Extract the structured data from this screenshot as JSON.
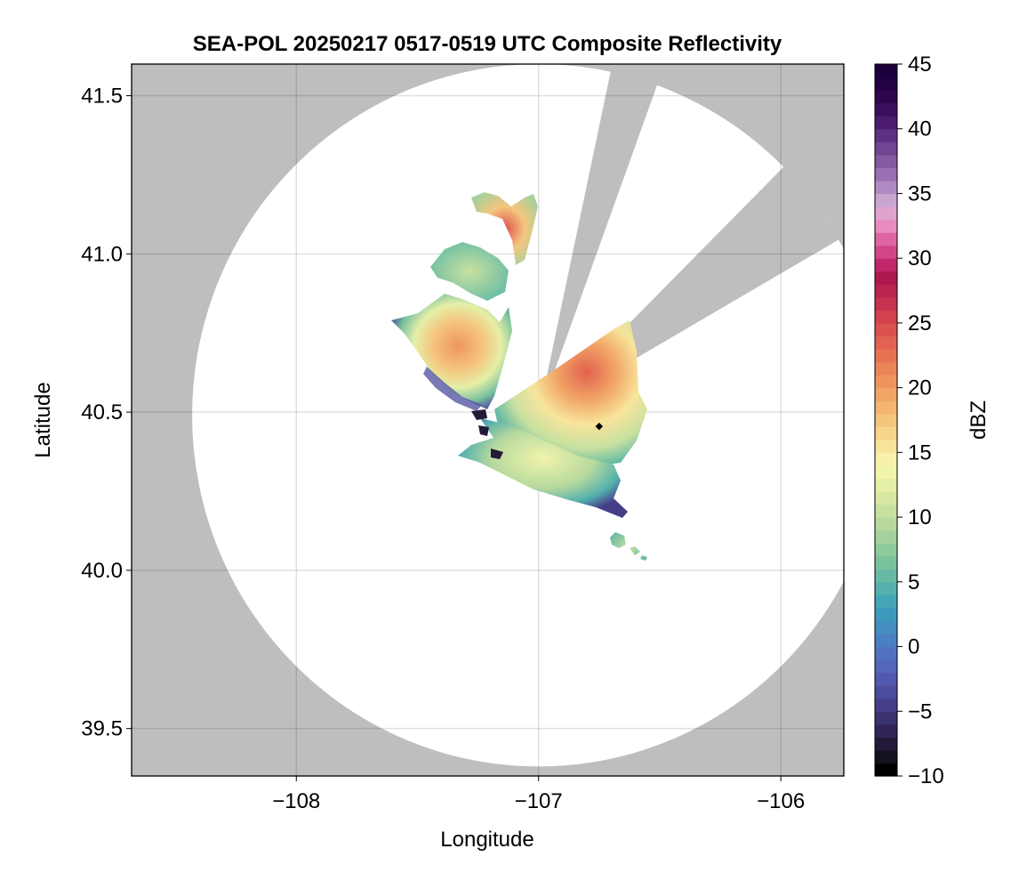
{
  "chart_data": {
    "type": "heatmap",
    "title": "SEA-POL 20250217 0517-0519 UTC Composite Reflectivity",
    "xlabel": "Longitude",
    "ylabel": "Latitude",
    "xlim": [
      -108.68,
      -105.74
    ],
    "ylim": [
      39.35,
      41.6
    ],
    "xticks": [
      -108,
      -107,
      -106
    ],
    "xtick_labels": [
      "−108",
      "−107",
      "−106"
    ],
    "yticks": [
      39.5,
      40.0,
      40.5,
      41.0,
      41.5
    ],
    "ytick_labels": [
      "39.5",
      "40.0",
      "40.5",
      "41.0",
      "41.5"
    ],
    "grid": true,
    "radar": {
      "center_lon": -107.0,
      "center_lat": 40.49,
      "radius_lon_deg": 1.43,
      "radius_lat_deg": 1.11,
      "blocked_sectors_deg_from_north": [
        [
          12,
          20
        ],
        [
          45,
          60
        ]
      ],
      "no_coverage_color": "#bebebe",
      "coverage_color": "#ffffff"
    },
    "site_marker": {
      "lon": -106.75,
      "lat": 40.455
    },
    "echo_regions": [
      {
        "name": "northwest cell",
        "lon": -107.28,
        "lat": 40.66,
        "approx_dbz": 20
      },
      {
        "name": "northeast cell",
        "lon": -106.7,
        "lat": 40.5,
        "approx_dbz": 25
      },
      {
        "name": "northern band",
        "lon": -106.96,
        "lat": 41.11,
        "approx_dbz": 28
      },
      {
        "name": "southern tail",
        "lon": -106.9,
        "lat": 40.3,
        "approx_dbz": 14
      }
    ],
    "colorbar": {
      "label": "dBZ",
      "min": -10,
      "max": 45,
      "ticks": [
        -10,
        -5,
        0,
        5,
        10,
        15,
        20,
        25,
        30,
        35,
        40,
        45
      ],
      "tick_labels": [
        "−10",
        "−5",
        "0",
        "5",
        "10",
        "15",
        "20",
        "25",
        "30",
        "35",
        "40",
        "45"
      ],
      "colors": [
        "#000000",
        "#14101e",
        "#231a3a",
        "#302556",
        "#3b3271",
        "#453f89",
        "#4c4c9d",
        "#5059ad",
        "#5466b8",
        "#5173bf",
        "#4a80c2",
        "#438dc1",
        "#3e9abd",
        "#44a6b6",
        "#54b1ad",
        "#66baa4",
        "#7ac29e",
        "#8fca9b",
        "#a4d19c",
        "#b7d99e",
        "#c8e1a0",
        "#d7e8a3",
        "#e5efa7",
        "#f1f4ab",
        "#f7f2a9",
        "#f8e49b",
        "#f7d58c",
        "#f5c57e",
        "#f3b571",
        "#f1a566",
        "#ee955d",
        "#eb8457",
        "#e77253",
        "#e26150",
        "#db514f",
        "#d3414f",
        "#c8324f",
        "#bb244f",
        "#ad184f",
        "#c0286b",
        "#d24687",
        "#de65a3",
        "#e88bc0",
        "#dfa3cf",
        "#c9a6cf",
        "#b08ac2",
        "#9a6fb3",
        "#855aa3",
        "#714592",
        "#5e3081",
        "#4c1d6f",
        "#3b0f5e",
        "#2e054f",
        "#240044",
        "#1c003b"
      ]
    }
  }
}
